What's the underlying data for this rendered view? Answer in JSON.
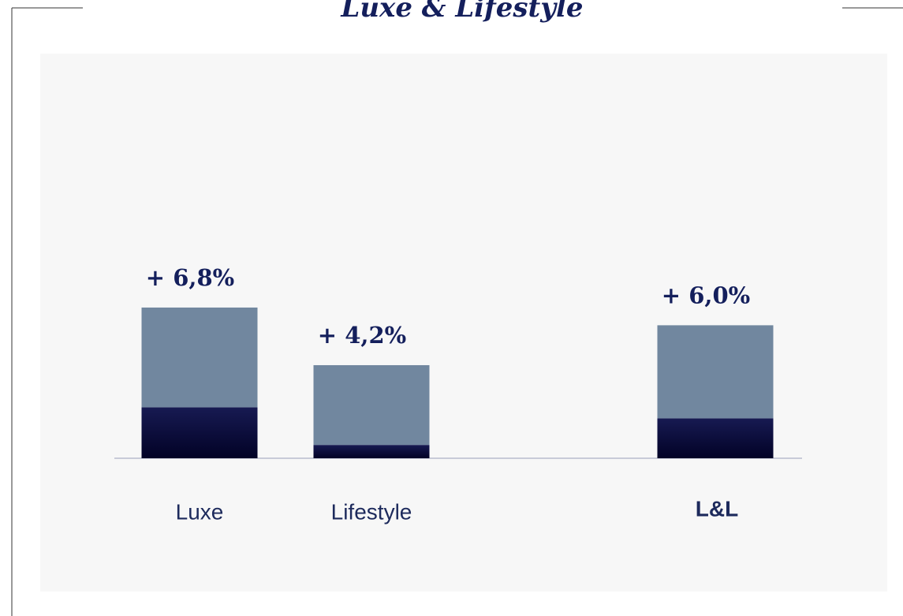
{
  "chart_data": {
    "type": "stacked_bar",
    "title": "Luxe & Lifestyle",
    "categories": [
      "Luxe",
      "Lifestyle",
      null,
      "L&L"
    ],
    "series": [
      {
        "color": "#0a0b38",
        "values": [
          2.3,
          0.6,
          null,
          1.8
        ]
      },
      {
        "color": "#71879f",
        "values": [
          4.5,
          3.6,
          null,
          4.2
        ]
      }
    ],
    "totals": [
      6.8,
      4.2,
      null,
      6.0
    ],
    "total_labels": [
      "+ 6,8%",
      "+ 4,2%",
      null,
      "+ 6,0%"
    ]
  }
}
